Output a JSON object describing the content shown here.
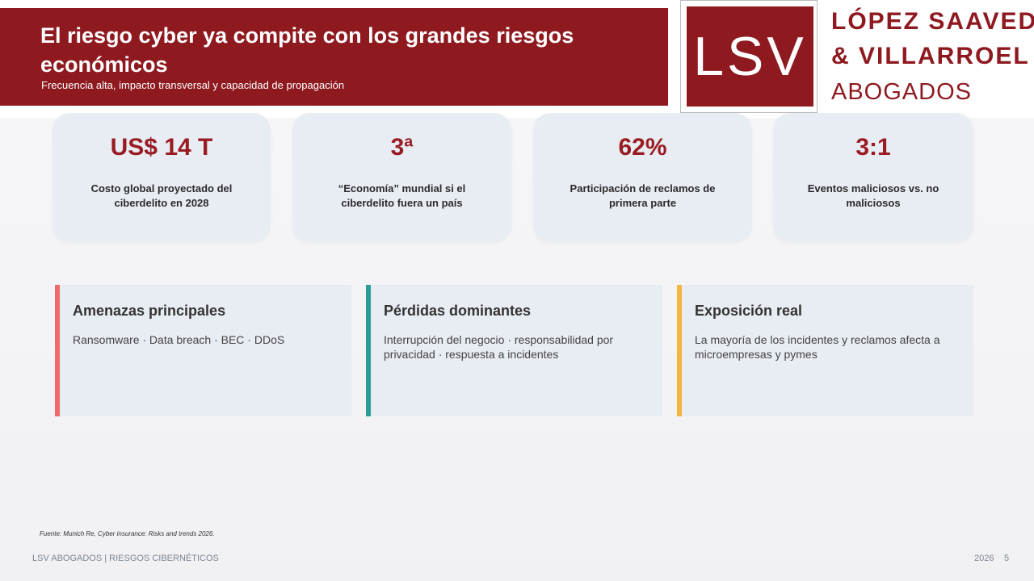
{
  "header": {
    "title": "El riesgo cyber ya compite con los grandes riesgos económicos",
    "subtitle": "Frecuencia alta, impacto transversal y capacidad de propagación"
  },
  "logo": {
    "mark": "LSV",
    "lines": [
      "LÓPEZ SAAVEDRA",
      "& VILLARROEL",
      "ABOGADOS"
    ]
  },
  "stats": [
    {
      "value": "US$ 14 T",
      "label": "Costo global proyectado del ciberdelito en 2028"
    },
    {
      "value": "3ª",
      "label": "“Economía” mundial si el ciberdelito fuera un país"
    },
    {
      "value": "62%",
      "label": "Participación de reclamos de primera parte"
    },
    {
      "value": "3:1",
      "label": "Eventos maliciosos vs. no maliciosos"
    }
  ],
  "cards": [
    {
      "title": "Amenazas principales",
      "body": "Ransomware · Data breach · BEC · DDoS"
    },
    {
      "title": "Pérdidas dominantes",
      "body": "Interrupción del negocio · responsabilidad por privacidad · respuesta a incidentes"
    },
    {
      "title": "Exposición real",
      "body": "La mayoría de los incidentes y reclamos afecta a microempresas y pymes"
    }
  ],
  "source": "Fuente: Munich Re, Cyber insurance: Risks and trends 2026.",
  "footer": {
    "left": "LSV ABOGADOS | RIESGOS CIBERNÉTICOS",
    "year": "2026",
    "page": "5"
  }
}
